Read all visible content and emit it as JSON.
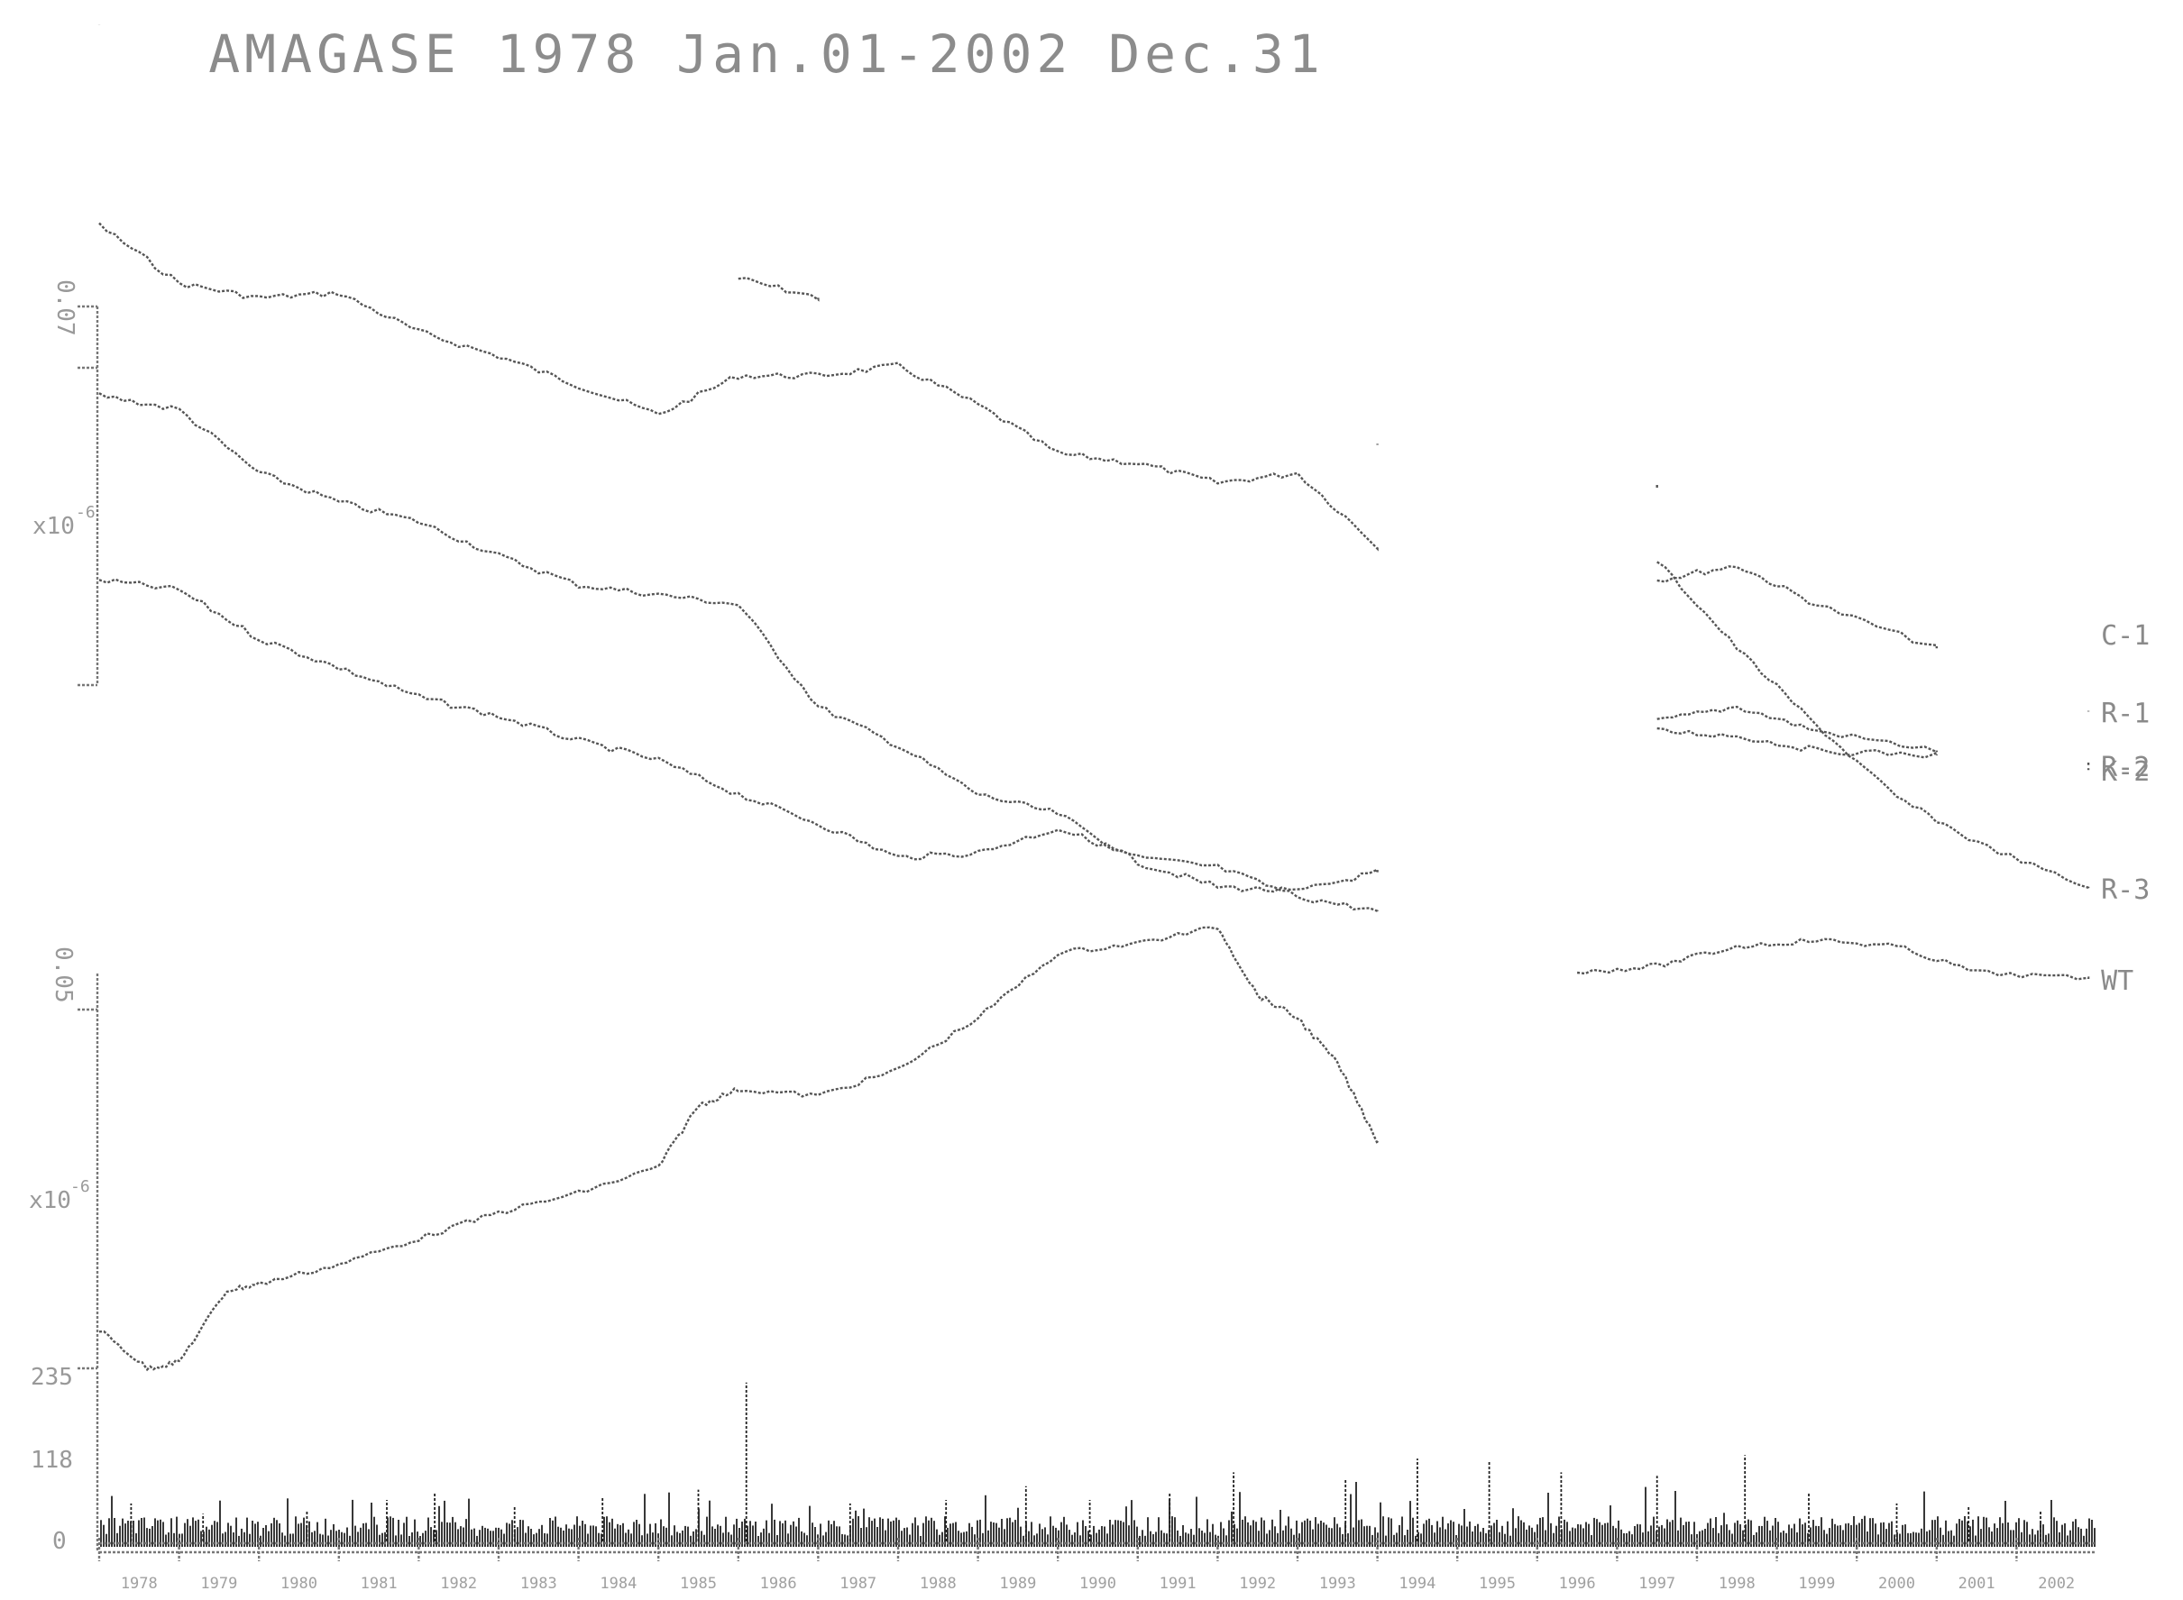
{
  "chart_data": {
    "type": "line",
    "title": "AMAGASE 1978 Jan.01-2002 Dec.31",
    "x_range": [
      "1978-01-01",
      "2002-12-31"
    ],
    "x_tick_labels": [
      "1978",
      "1979",
      "1980",
      "1981",
      "1982",
      "1983",
      "1984",
      "1985",
      "1986",
      "1987",
      "1988",
      "1989",
      "1990",
      "1991",
      "1992",
      "1993",
      "1994",
      "1995",
      "1996",
      "1997",
      "1998",
      "1999",
      "2000",
      "2001",
      "2002"
    ],
    "upper_panel": {
      "axis_labels": {
        "top": "0.07",
        "scale": "x10",
        "scale_exp": "-6"
      },
      "series": [
        {
          "name": "C-1",
          "points": [
            [
              1978.0,
              0.0
            ],
            [
              1986.0,
              -0.52
            ],
            [
              1987.0,
              -0.56
            ],
            [
              1994.0,
              -0.86
            ],
            [
              1997.5,
              -0.95
            ],
            [
              2002.9,
              -1.25
            ]
          ]
        },
        {
          "name": "R-1",
          "points": [
            [
              1978.0,
              -0.41
            ],
            [
              1979.0,
              -0.53
            ],
            [
              1980.0,
              -0.56
            ],
            [
              1981.0,
              -0.55
            ],
            [
              1982.0,
              -0.63
            ],
            [
              1983.0,
              -0.68
            ],
            [
              1984.0,
              -0.74
            ],
            [
              1985.0,
              -0.8
            ],
            [
              1986.0,
              -0.72
            ],
            [
              1987.0,
              -0.72
            ],
            [
              1988.0,
              -0.7
            ],
            [
              1989.0,
              -0.78
            ],
            [
              1990.0,
              -0.88
            ],
            [
              1991.0,
              -0.9
            ],
            [
              1992.0,
              -0.94
            ],
            [
              1993.0,
              -0.92
            ],
            [
              1994.0,
              -1.07
            ],
            [
              1997.5,
              -1.14
            ],
            [
              1998.5,
              -1.11
            ],
            [
              1999.5,
              -1.19
            ],
            [
              2001.0,
              -1.28
            ],
            [
              2002.9,
              -1.41
            ]
          ]
        },
        {
          "name": "R-2",
          "points": [
            [
              1978.0,
              -0.76
            ],
            [
              1979.0,
              -0.79
            ],
            [
              1980.0,
              -0.92
            ],
            [
              1981.0,
              -0.98
            ],
            [
              1982.0,
              -1.02
            ],
            [
              1983.0,
              -1.09
            ],
            [
              1984.0,
              -1.15
            ],
            [
              1985.0,
              -1.17
            ],
            [
              1986.0,
              -1.19
            ],
            [
              1987.0,
              -1.4
            ],
            [
              1988.0,
              -1.48
            ],
            [
              1989.0,
              -1.58
            ],
            [
              1990.0,
              -1.62
            ],
            [
              1991.0,
              -1.72
            ],
            [
              1992.0,
              -1.77
            ],
            [
              1993.0,
              -1.78
            ],
            [
              1994.0,
              -1.74
            ],
            [
              1997.5,
              -1.43
            ],
            [
              1998.5,
              -1.4
            ],
            [
              1999.5,
              -1.45
            ],
            [
              2001.0,
              -1.49
            ],
            [
              2002.9,
              -1.52
            ]
          ]
        },
        {
          "name": "K-2",
          "points": [
            [
              1978.0,
              -1.14
            ],
            [
              1979.0,
              -1.16
            ],
            [
              1980.0,
              -1.26
            ],
            [
              1981.0,
              -1.32
            ],
            [
              1982.0,
              -1.38
            ],
            [
              1983.0,
              -1.42
            ],
            [
              1984.0,
              -1.47
            ],
            [
              1985.0,
              -1.51
            ],
            [
              1986.0,
              -1.58
            ],
            [
              1987.0,
              -1.64
            ],
            [
              1988.0,
              -1.71
            ],
            [
              1989.0,
              -1.7
            ],
            [
              1990.0,
              -1.65
            ],
            [
              1991.0,
              -1.71
            ],
            [
              1992.0,
              -1.73
            ],
            [
              1993.0,
              -1.79
            ],
            [
              1994.0,
              -1.82
            ],
            [
              1997.5,
              -1.45
            ],
            [
              1998.5,
              -1.46
            ],
            [
              1999.5,
              -1.49
            ],
            [
              2001.0,
              -1.5
            ],
            [
              2002.9,
              -1.53
            ]
          ]
        }
      ]
    },
    "lower_panel": {
      "axis_labels": {
        "top": "0.05",
        "scale": "x10",
        "scale_exp": "-6"
      },
      "series": [
        {
          "name": "R-3",
          "points": [
            [
              1997.5,
              -0.25
            ],
            [
              1998.5,
              -0.52
            ],
            [
              1999.5,
              -0.76
            ],
            [
              2000.5,
              -0.98
            ],
            [
              2001.5,
              -1.12
            ],
            [
              2002.9,
              -1.26
            ]
          ]
        },
        {
          "name": "WT",
          "points": [
            [
              1978.0,
              -2.62
            ],
            [
              1978.6,
              -2.74
            ],
            [
              1979.0,
              -2.72
            ],
            [
              1979.6,
              -2.5
            ],
            [
              1980.0,
              -2.48
            ],
            [
              1981.0,
              -2.42
            ],
            [
              1982.0,
              -2.34
            ],
            [
              1983.0,
              -2.26
            ],
            [
              1984.0,
              -2.2
            ],
            [
              1985.0,
              -2.12
            ],
            [
              1985.5,
              -1.93
            ],
            [
              1986.0,
              -1.88
            ],
            [
              1987.0,
              -1.9
            ],
            [
              1988.0,
              -1.82
            ],
            [
              1989.0,
              -1.66
            ],
            [
              1990.0,
              -1.46
            ],
            [
              1991.0,
              -1.43
            ],
            [
              1992.0,
              -1.38
            ],
            [
              1992.5,
              -1.59
            ],
            [
              1993.0,
              -1.66
            ],
            [
              1993.5,
              -1.8
            ],
            [
              1994.0,
              -2.04
            ],
            [
              1996.5,
              -1.52
            ],
            [
              1997.5,
              -1.5
            ],
            [
              1998.5,
              -1.44
            ],
            [
              1999.5,
              -1.42
            ],
            [
              2000.5,
              -1.44
            ],
            [
              2001.5,
              -1.52
            ],
            [
              2002.9,
              -1.54
            ]
          ]
        }
      ]
    },
    "rain_panel": {
      "axis_labels": [
        "235",
        "118",
        "0"
      ],
      "max_value": 235,
      "peaks": [
        [
          1978.4,
          55
        ],
        [
          1979.3,
          40
        ],
        [
          1980.6,
          45
        ],
        [
          1981.6,
          60
        ],
        [
          1982.2,
          70
        ],
        [
          1983.2,
          50
        ],
        [
          1984.3,
          65
        ],
        [
          1985.5,
          75
        ],
        [
          1986.1,
          230
        ],
        [
          1987.4,
          55
        ],
        [
          1988.6,
          60
        ],
        [
          1989.6,
          80
        ],
        [
          1990.4,
          60
        ],
        [
          1991.4,
          70
        ],
        [
          1992.2,
          100
        ],
        [
          1993.6,
          90
        ],
        [
          1994.5,
          120
        ],
        [
          1995.4,
          115
        ],
        [
          1996.3,
          100
        ],
        [
          1997.5,
          95
        ],
        [
          1998.6,
          125
        ],
        [
          1999.4,
          70
        ],
        [
          2000.5,
          55
        ],
        [
          2001.4,
          50
        ],
        [
          2002.3,
          45
        ]
      ]
    }
  }
}
